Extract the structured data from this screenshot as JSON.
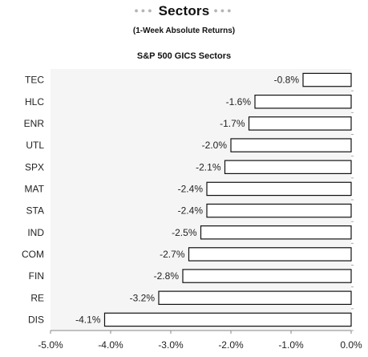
{
  "header": {
    "title": "Sectors",
    "subtitle": "(1-Week Absolute Returns)",
    "dots": "●●●"
  },
  "chart_data": {
    "type": "bar",
    "orientation": "horizontal",
    "title": "S&P 500 GICS Sectors",
    "categories": [
      "TEC",
      "HLC",
      "ENR",
      "UTL",
      "SPX",
      "MAT",
      "STA",
      "IND",
      "COM",
      "FIN",
      "RE",
      "DIS"
    ],
    "values": [
      -0.8,
      -1.6,
      -1.7,
      -2.0,
      -2.1,
      -2.4,
      -2.4,
      -2.5,
      -2.7,
      -2.8,
      -3.2,
      -4.1
    ],
    "value_labels": [
      "-0.8%",
      "-1.6%",
      "-1.7%",
      "-2.0%",
      "-2.1%",
      "-2.4%",
      "-2.4%",
      "-2.5%",
      "-2.7%",
      "-2.8%",
      "-3.2%",
      "-4.1%"
    ],
    "xlim": [
      -5.0,
      0.0
    ],
    "x_ticks": [
      -5.0,
      -4.0,
      -3.0,
      -2.0,
      -1.0,
      0.0
    ],
    "x_tick_labels": [
      "-5.0%",
      "-4.0%",
      "-3.0%",
      "-2.0%",
      "-1.0%",
      "0.0%"
    ],
    "grid": false,
    "bar_fill": "#ffffff",
    "bar_stroke": "#111111",
    "plot_background": "#f5f5f5"
  }
}
